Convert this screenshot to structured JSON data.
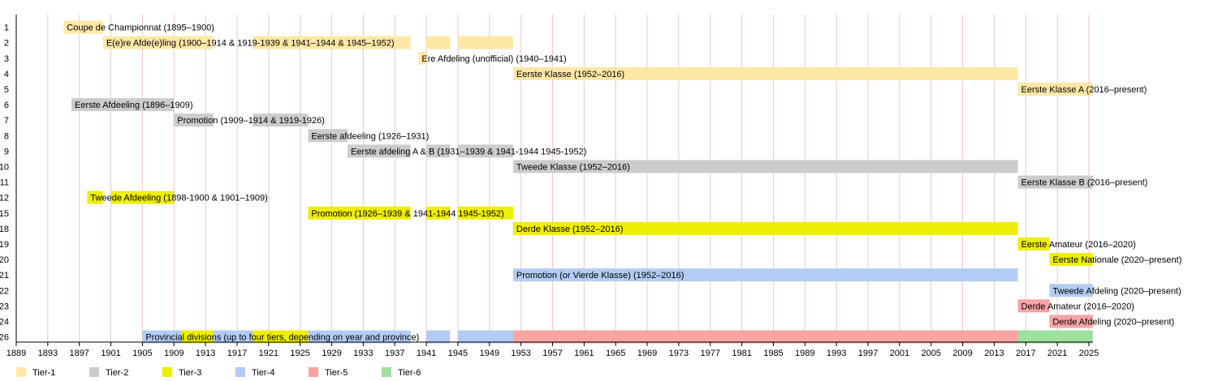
{
  "chart_data": {
    "type": "timeline",
    "x_range": [
      1889,
      2025.5
    ],
    "x_ticks": [
      1889,
      1893,
      1897,
      1901,
      1905,
      1909,
      1913,
      1917,
      1921,
      1925,
      1929,
      1933,
      1937,
      1941,
      1945,
      1949,
      1953,
      1957,
      1961,
      1965,
      1969,
      1973,
      1977,
      1981,
      1985,
      1989,
      1993,
      1997,
      2001,
      2005,
      2009,
      2013,
      2017,
      2021,
      2025
    ],
    "rows": [
      "1",
      "2",
      "3",
      "4",
      "5",
      "6",
      "7",
      "8",
      "9",
      "10",
      "11",
      "12",
      "15",
      "18",
      "19",
      "20",
      "21",
      "22",
      "23",
      "24",
      "26"
    ],
    "tiers": [
      {
        "name": "Tier-1",
        "color": "#FFE8A6"
      },
      {
        "name": "Tier-2",
        "color": "#CCCCCC"
      },
      {
        "name": "Tier-3",
        "color": "#EEEE00"
      },
      {
        "name": "Tier-4",
        "color": "#B3CCF5"
      },
      {
        "name": "Tier-5",
        "color": "#F9A3A3"
      },
      {
        "name": "Tier-6",
        "color": "#9EE09E"
      }
    ],
    "bars": [
      {
        "row": 0,
        "tier": 0,
        "segments": [
          [
            1895,
            1900
          ]
        ],
        "label": "Coupe de Championnat (1895–1900)"
      },
      {
        "row": 1,
        "tier": 0,
        "segments": [
          [
            1900,
            1914
          ],
          [
            1919,
            1939
          ],
          [
            1941,
            1944
          ],
          [
            1945,
            1952
          ]
        ],
        "label": "E(e)re Afde(e)ling (1900–1914 & 1919-1939 & 1941–1944 & 1945–1952)"
      },
      {
        "row": 2,
        "tier": 0,
        "segments": [
          [
            1940,
            1941
          ]
        ],
        "label": "Ere Afdeling (unofficial) (1940–1941)"
      },
      {
        "row": 3,
        "tier": 0,
        "segments": [
          [
            1952,
            2016
          ]
        ],
        "label": "Eerste Klasse (1952–2016)"
      },
      {
        "row": 4,
        "tier": 0,
        "segments": [
          [
            2016,
            2025.5
          ]
        ],
        "label": "Eerste Klasse A (2016–present)"
      },
      {
        "row": 5,
        "tier": 1,
        "segments": [
          [
            1896,
            1909
          ]
        ],
        "label": "Eerste Afdeeling (1896–1909)"
      },
      {
        "row": 6,
        "tier": 1,
        "segments": [
          [
            1909,
            1914
          ],
          [
            1919,
            1926
          ]
        ],
        "label": "Promotion (1909–1914 & 1919-1926)"
      },
      {
        "row": 7,
        "tier": 1,
        "segments": [
          [
            1926,
            1931
          ]
        ],
        "label": "Eerste afdeeling (1926–1931)"
      },
      {
        "row": 8,
        "tier": 1,
        "segments": [
          [
            1931,
            1939
          ],
          [
            1941,
            1944
          ],
          [
            1945,
            1952
          ]
        ],
        "label": "Eerste afdeling A & B (1931–1939 & 1941-1944 1945-1952)"
      },
      {
        "row": 9,
        "tier": 1,
        "segments": [
          [
            1952,
            2016
          ]
        ],
        "label": "Tweede Klasse (1952–2016)"
      },
      {
        "row": 10,
        "tier": 1,
        "segments": [
          [
            2016,
            2025.5
          ]
        ],
        "label": "Eerste Klasse B (2016–present)"
      },
      {
        "row": 11,
        "tier": 2,
        "segments": [
          [
            1898,
            1900
          ],
          [
            1901,
            1909
          ]
        ],
        "label": "Tweede Afdeeling (1898-1900 & 1901–1909)"
      },
      {
        "row": 12,
        "tier": 2,
        "segments": [
          [
            1926,
            1939
          ],
          [
            1941,
            1944
          ],
          [
            1945,
            1952
          ]
        ],
        "label": "Promotion (1926–1939 & 1941-1944 1945-1952)"
      },
      {
        "row": 13,
        "tier": 2,
        "segments": [
          [
            1952,
            2016
          ]
        ],
        "label": "Derde Klasse (1952–2016)"
      },
      {
        "row": 14,
        "tier": 2,
        "segments": [
          [
            2016,
            2020
          ]
        ],
        "label": "Eerste Amateur (2016–2020)"
      },
      {
        "row": 15,
        "tier": 2,
        "segments": [
          [
            2020,
            2025.5
          ]
        ],
        "label": "Eerste Nationale (2020–present)"
      },
      {
        "row": 16,
        "tier": 3,
        "segments": [
          [
            1952,
            2016
          ]
        ],
        "label": "Promotion (or Vierde Klasse) (1952–2016)"
      },
      {
        "row": 17,
        "tier": 3,
        "segments": [
          [
            2020,
            2025.5
          ]
        ],
        "label": "Tweede Afdeling (2020–present)"
      },
      {
        "row": 18,
        "tier": 4,
        "segments": [
          [
            2016,
            2020
          ]
        ],
        "label": "Derde Amateur (2016–2020)"
      },
      {
        "row": 19,
        "tier": 4,
        "segments": [
          [
            2020,
            2025.5
          ]
        ],
        "label": "Derde Afdeling (2020–present)"
      },
      {
        "row": 20,
        "tier": 3,
        "segments": [
          [
            1905,
            1939
          ],
          [
            1941,
            1944
          ],
          [
            1945,
            1952
          ]
        ],
        "label": "Provincial divisions (up to four tiers, depending on year and province)"
      },
      {
        "row": 20,
        "tier": 4,
        "segments": [
          [
            1952,
            2016
          ]
        ],
        "label": ""
      },
      {
        "row": 20,
        "tier": 5,
        "segments": [
          [
            2016,
            2025.5
          ]
        ],
        "label": ""
      }
    ],
    "overlays": [
      {
        "row": 20,
        "tier": 2,
        "segments": [
          [
            1910,
            1914
          ],
          [
            1919,
            1926
          ]
        ]
      }
    ]
  }
}
